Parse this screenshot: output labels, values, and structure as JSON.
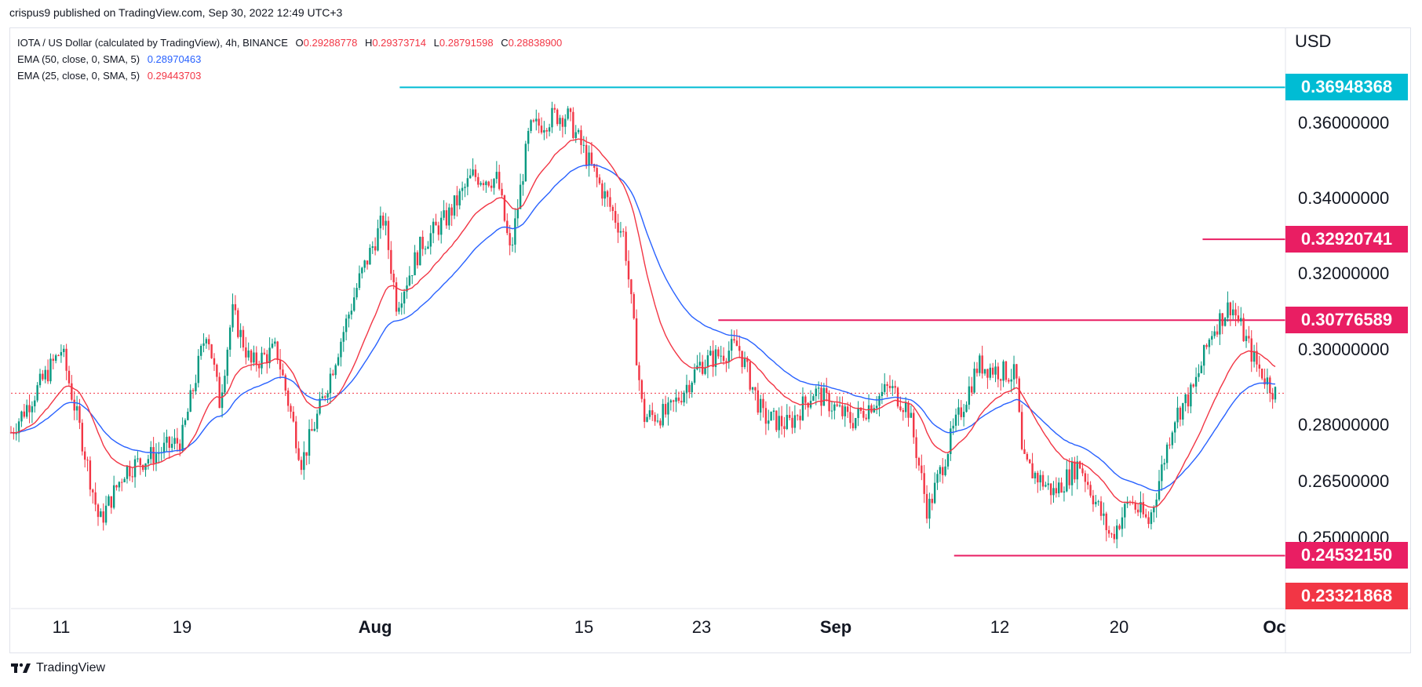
{
  "header": {
    "published": "crispus9 published on TradingView.com, Sep 30, 2022 12:49 UTC+3"
  },
  "legend": {
    "symbol": "IOTA / US Dollar (calculated by TradingView), 4h, BINANCE",
    "open_key": "O",
    "open": "0.29288778",
    "high_key": "H",
    "high": "0.29373714",
    "low_key": "L",
    "low": "0.28791598",
    "close_key": "C",
    "close": "0.28838900",
    "ema50_label": "EMA (50, close, 0, SMA, 5)",
    "ema50_value": "0.28970463",
    "ema25_label": "EMA (25, close, 0, SMA, 5)",
    "ema25_value": "0.29443703"
  },
  "axis": {
    "currency": "USD"
  },
  "footer": {
    "brand": "TradingView"
  },
  "colors": {
    "up": "#089981",
    "down": "#f23645",
    "ema50": "#2962ff",
    "ema25": "#f23645",
    "cyan": "#00bcd4",
    "magenta": "#e91e63"
  },
  "chart_data": {
    "type": "candlestick",
    "interval": "4h",
    "y_ticks": [
      "0.36000000",
      "0.34000000",
      "0.32000000",
      "0.30000000",
      "0.28000000",
      "0.26500000",
      "0.25000000"
    ],
    "y_tick_values": [
      0.36,
      0.34,
      0.32,
      0.3,
      0.28,
      0.265,
      0.25
    ],
    "x_ticks": [
      {
        "label": "11",
        "major": false
      },
      {
        "label": "19",
        "major": false
      },
      {
        "label": "Aug",
        "major": true
      },
      {
        "label": "15",
        "major": false
      },
      {
        "label": "23",
        "major": false
      },
      {
        "label": "Sep",
        "major": true
      },
      {
        "label": "12",
        "major": false
      },
      {
        "label": "20",
        "major": false
      },
      {
        "label": "Oc",
        "major": true
      }
    ],
    "price_labels": [
      {
        "value": "0.36948368",
        "color": "#00bcd4",
        "level": 0.36948368
      },
      {
        "value": "0.32920741",
        "color": "#e91e63",
        "level": 0.32920741
      },
      {
        "value": "0.30776589",
        "color": "#e91e63",
        "level": 0.30776589
      },
      {
        "value": "0.24532150",
        "color": "#e91e63",
        "level": 0.2453215
      },
      {
        "value": "0.23321868",
        "color": "#f23645",
        "level": 0.23321868
      }
    ],
    "horizontal_lines": [
      {
        "name": "resistance-high",
        "level": 0.36948368,
        "color": "#00bcd4",
        "from": 0.305,
        "to": 1.0
      },
      {
        "name": "recent-high",
        "level": 0.32920741,
        "color": "#e91e63",
        "from": 0.935,
        "to": 1.0
      },
      {
        "name": "range-top",
        "level": 0.30776589,
        "color": "#e91e63",
        "from": 0.555,
        "to": 1.0
      },
      {
        "name": "range-low",
        "level": 0.2453215,
        "color": "#e91e63",
        "from": 0.74,
        "to": 1.0
      }
    ],
    "last_price": 0.288389,
    "path_anchors": [
      [
        0,
        0.278
      ],
      [
        0.04,
        0.3
      ],
      [
        0.055,
        0.278
      ],
      [
        0.07,
        0.254
      ],
      [
        0.09,
        0.268
      ],
      [
        0.135,
        0.276
      ],
      [
        0.155,
        0.306
      ],
      [
        0.165,
        0.286
      ],
      [
        0.175,
        0.31
      ],
      [
        0.19,
        0.296
      ],
      [
        0.21,
        0.3
      ],
      [
        0.23,
        0.27
      ],
      [
        0.245,
        0.285
      ],
      [
        0.275,
        0.318
      ],
      [
        0.295,
        0.335
      ],
      [
        0.305,
        0.312
      ],
      [
        0.325,
        0.328
      ],
      [
        0.345,
        0.335
      ],
      [
        0.365,
        0.346
      ],
      [
        0.385,
        0.345
      ],
      [
        0.395,
        0.325
      ],
      [
        0.41,
        0.358
      ],
      [
        0.43,
        0.362
      ],
      [
        0.44,
        0.362
      ],
      [
        0.465,
        0.344
      ],
      [
        0.485,
        0.33
      ],
      [
        0.5,
        0.282
      ],
      [
        0.52,
        0.283
      ],
      [
        0.545,
        0.296
      ],
      [
        0.575,
        0.301
      ],
      [
        0.595,
        0.282
      ],
      [
        0.615,
        0.28
      ],
      [
        0.635,
        0.289
      ],
      [
        0.665,
        0.281
      ],
      [
        0.695,
        0.29
      ],
      [
        0.71,
        0.284
      ],
      [
        0.725,
        0.257
      ],
      [
        0.745,
        0.278
      ],
      [
        0.765,
        0.296
      ],
      [
        0.795,
        0.293
      ],
      [
        0.8,
        0.27
      ],
      [
        0.825,
        0.262
      ],
      [
        0.845,
        0.27
      ],
      [
        0.87,
        0.25
      ],
      [
        0.885,
        0.26
      ],
      [
        0.9,
        0.254
      ],
      [
        0.92,
        0.282
      ],
      [
        0.935,
        0.289
      ],
      [
        0.95,
        0.305
      ],
      [
        0.965,
        0.312
      ],
      [
        0.985,
        0.296
      ],
      [
        1.0,
        0.2884
      ]
    ]
  }
}
